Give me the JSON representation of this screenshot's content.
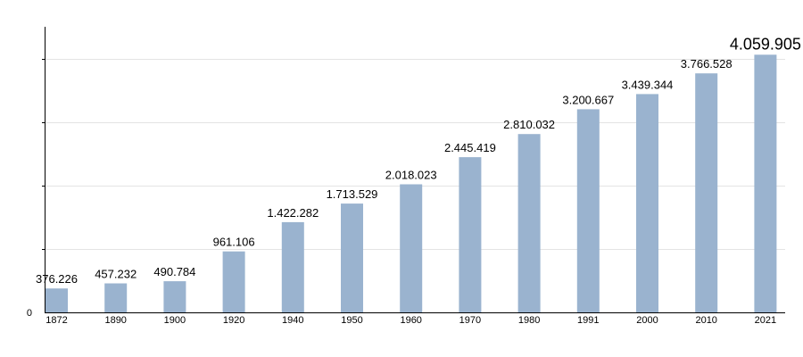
{
  "chart_data": {
    "type": "bar",
    "categories": [
      "1872",
      "1890",
      "1900",
      "1920",
      "1940",
      "1950",
      "1960",
      "1970",
      "1980",
      "1991",
      "2000",
      "2010",
      "2021"
    ],
    "values": [
      376226,
      457232,
      490784,
      961106,
      1422282,
      1713529,
      2018023,
      2445419,
      2810032,
      3200667,
      3439344,
      3766528,
      4059905
    ],
    "data_labels": [
      "376.226",
      "457.232",
      "490.784",
      "961.106",
      "1.422.282",
      "1.713.529",
      "2.018.023",
      "2.445.419",
      "2.810.032",
      "3.200.667",
      "3.439.344",
      "3.766.528",
      "4.059.905"
    ],
    "y_tick_labels": [
      "0"
    ],
    "ylim": [
      0,
      4500000
    ],
    "y_gridlines": [
      1000000,
      2000000,
      3000000,
      4000000
    ],
    "grid": true,
    "bar_color": "#9ab3cf",
    "title": "",
    "xlabel": "",
    "ylabel": ""
  }
}
